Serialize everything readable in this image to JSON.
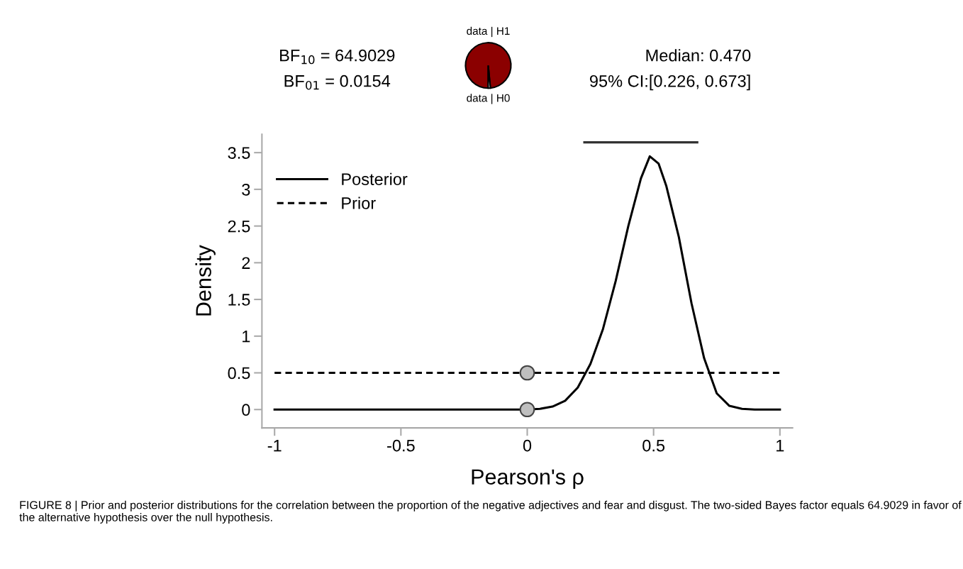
{
  "chart_data": [
    {
      "type": "pie",
      "categories": [
        "data | H1",
        "data | H0"
      ],
      "values": [
        98.48,
        1.52
      ],
      "colors": [
        "#8b0000",
        "#ffffff"
      ]
    },
    {
      "type": "line",
      "xlabel": "Pearson's ρ",
      "ylabel": "Density",
      "annotations": [
        "BF$_{10}$ = 64.9029",
        "BF$_{01}$ = 0.0154",
        "Median: 0.470",
        "95% CI:[0.226, 0.673]",
        "FIGURE 8 | Prior and posterior distributions for the correlation between the proportion of the negative adjectives and fear and disgust. The two-sided Bayes factor equals 64.9029 in favor of the alternative hypothesis over the null hypothesis."
      ],
      "series": [
        {
          "name": "Posterior",
          "color": "#000000",
          "line_style": "solid",
          "x": [
            -1,
            0,
            0.05,
            0.1,
            0.15,
            0.2,
            0.25,
            0.3,
            0.35,
            0.4,
            0.45,
            0.485,
            0.52,
            0.55,
            0.6,
            0.65,
            0.7,
            0.75,
            0.8,
            0.85,
            0.9,
            1
          ],
          "values": [
            0,
            0,
            0.01,
            0.04,
            0.12,
            0.3,
            0.62,
            1.1,
            1.75,
            2.5,
            3.15,
            3.45,
            3.35,
            3.05,
            2.35,
            1.45,
            0.7,
            0.22,
            0.05,
            0.01,
            0,
            0
          ]
        },
        {
          "name": "Prior",
          "color": "#000000",
          "line_style": "dashed",
          "x": [
            -1,
            1
          ],
          "values": [
            0.5,
            0.5
          ]
        },
        {
          "type": "scatter",
          "color": "#bfbfbf",
          "marker": "circle",
          "x": [
            0,
            0
          ],
          "values": [
            0.5,
            0
          ]
        },
        {
          "type": "line",
          "color": "#333333",
          "line_style": "solid",
          "x": [
            0.226,
            0.673
          ],
          "values": [
            3.64,
            3.64
          ]
        }
      ],
      "xlim": [
        -1.05,
        1.05
      ],
      "ylim": [
        -0.25,
        3.75
      ],
      "xticks": [
        -1,
        -0.5,
        0,
        0.5,
        1
      ],
      "yticks": [
        0,
        0.5,
        1,
        1.5,
        2,
        2.5,
        3,
        3.5
      ],
      "legend": "top left",
      "grid": false
    }
  ]
}
